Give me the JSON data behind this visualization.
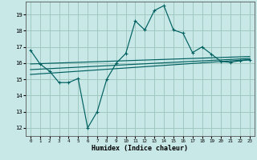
{
  "xlabel": "Humidex (Indice chaleur)",
  "bg_color": "#c8e8e8",
  "grid_color": "#a0c8c0",
  "line_color": "#006060",
  "x_values": [
    0,
    1,
    2,
    3,
    4,
    5,
    6,
    7,
    8,
    9,
    10,
    11,
    12,
    13,
    14,
    15,
    16,
    17,
    18,
    19,
    20,
    21,
    22,
    23
  ],
  "series_main": [
    16.8,
    15.95,
    15.5,
    14.8,
    14.8,
    15.05,
    12.0,
    13.0,
    15.0,
    16.0,
    16.6,
    18.6,
    18.05,
    19.25,
    19.55,
    18.05,
    17.85,
    16.65,
    17.0,
    16.55,
    16.1,
    16.05,
    16.15,
    16.2
  ],
  "series_line1": [
    15.95,
    15.97,
    15.99,
    16.01,
    16.03,
    16.05,
    16.07,
    16.09,
    16.11,
    16.13,
    16.15,
    16.17,
    16.19,
    16.21,
    16.23,
    16.25,
    16.27,
    16.29,
    16.31,
    16.33,
    16.35,
    16.37,
    16.39,
    16.41
  ],
  "series_line2": [
    15.6,
    15.63,
    15.66,
    15.69,
    15.72,
    15.75,
    15.78,
    15.81,
    15.84,
    15.87,
    15.9,
    15.93,
    15.96,
    15.99,
    16.02,
    16.05,
    16.08,
    16.11,
    16.14,
    16.17,
    16.2,
    16.23,
    16.26,
    16.29
  ],
  "series_line3": [
    15.3,
    15.34,
    15.38,
    15.42,
    15.46,
    15.5,
    15.54,
    15.58,
    15.62,
    15.66,
    15.7,
    15.74,
    15.78,
    15.82,
    15.86,
    15.9,
    15.94,
    15.98,
    16.02,
    16.06,
    16.1,
    16.14,
    16.18,
    16.22
  ],
  "ylim": [
    11.5,
    19.8
  ],
  "yticks": [
    12,
    13,
    14,
    15,
    16,
    17,
    18,
    19
  ],
  "xlim": [
    -0.5,
    23.5
  ],
  "xticks": [
    0,
    1,
    2,
    3,
    4,
    5,
    6,
    7,
    8,
    9,
    10,
    11,
    12,
    13,
    14,
    15,
    16,
    17,
    18,
    19,
    20,
    21,
    22,
    23
  ]
}
